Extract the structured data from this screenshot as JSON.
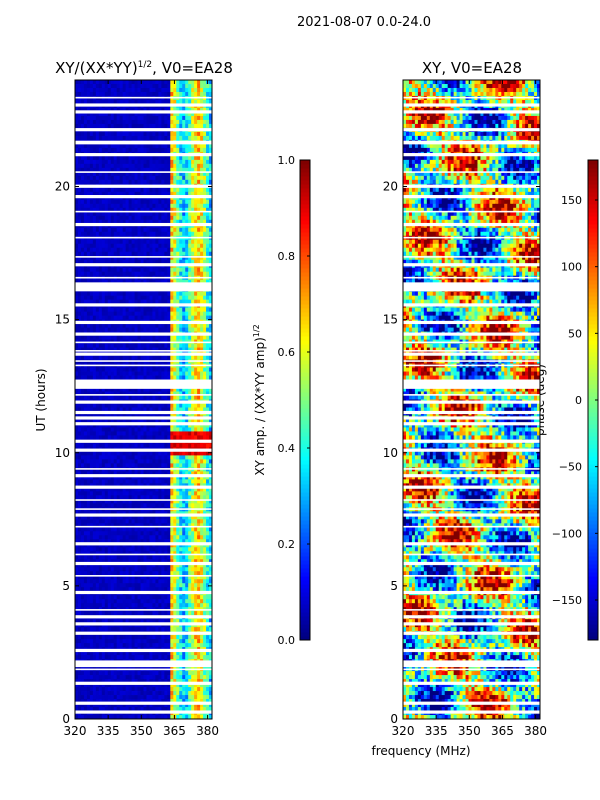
{
  "suptitle": "2021-08-07 0.0-24.0",
  "chart_data": [
    {
      "type": "heatmap",
      "title_base": "XY/(XX*YY)",
      "title_exp": "1/2",
      "title_suffix": ", V0=EA28",
      "xlabel": "",
      "ylabel": "UT (hours)",
      "xlim": [
        320,
        382
      ],
      "ylim": [
        0,
        24
      ],
      "xticks": [
        320,
        335,
        350,
        365,
        380
      ],
      "yticks": [
        0,
        5,
        10,
        15,
        20
      ],
      "colorbar": {
        "label_base": "XY amp. / (XX*YY amp)",
        "label_exp": "1/2",
        "range": [
          0.0,
          1.0
        ],
        "ticks": [
          0.0,
          0.2,
          0.4,
          0.6,
          0.8,
          1.0
        ],
        "tick_labels": [
          "0.0",
          "0.2",
          "0.4",
          "0.6",
          "0.8",
          "1.0"
        ]
      }
    },
    {
      "type": "heatmap",
      "title": "XY, V0=EA28",
      "xlabel": "frequency (MHz)",
      "ylabel": "",
      "xlim": [
        320,
        382
      ],
      "ylim": [
        0,
        24
      ],
      "xticks": [
        320,
        335,
        350,
        365,
        380
      ],
      "yticks": [
        0,
        5,
        10,
        15,
        20
      ],
      "colorbar": {
        "label": "phase (deg)",
        "range": [
          -180,
          180
        ],
        "ticks": [
          -150,
          -100,
          -50,
          0,
          50,
          100,
          150
        ],
        "tick_labels": [
          "−150",
          "−100",
          "−50",
          "0",
          "50",
          "100",
          "150"
        ]
      }
    }
  ],
  "colors": {
    "jet_low": "#00007f",
    "jet_high": "#7f0000",
    "gap": "#ffffff"
  }
}
